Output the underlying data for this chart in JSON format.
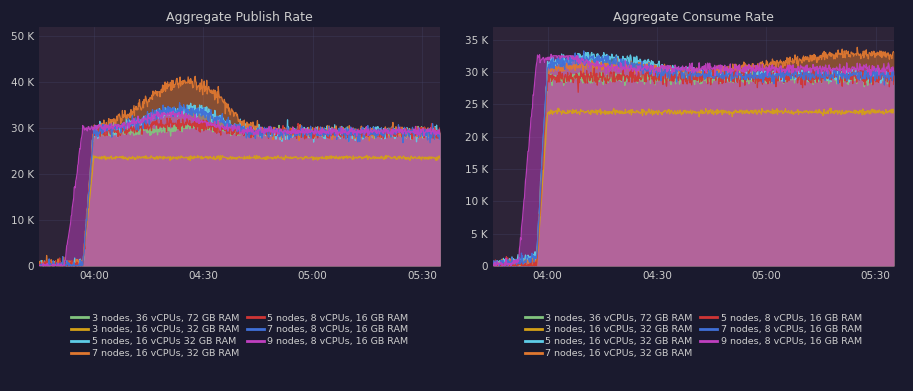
{
  "title_left": "Aggregate Publish Rate",
  "title_right": "Aggregate Consume Rate",
  "bg_color": "#1a1a2e",
  "plot_bg_color": "#2d2438",
  "text_color": "#cccccc",
  "grid_color": "#444466",
  "xticks": [
    "04:00",
    "04:30",
    "05:00",
    "05:30"
  ],
  "xtick_pos": [
    15,
    45,
    75,
    105
  ],
  "xlim": [
    0,
    110
  ],
  "yticks_left": [
    0,
    10000,
    20000,
    30000,
    40000,
    50000
  ],
  "ytick_labels_left": [
    "0",
    "10 K",
    "20 K",
    "30 K",
    "40 K",
    "50 K"
  ],
  "ylim_left": [
    0,
    52000
  ],
  "yticks_right": [
    0,
    5000,
    10000,
    15000,
    20000,
    25000,
    30000,
    35000
  ],
  "ytick_labels_right": [
    "0",
    "5 K",
    "10 K",
    "15 K",
    "20 K",
    "25 K",
    "30 K",
    "35 K"
  ],
  "ylim_right": [
    0,
    37000
  ],
  "series": [
    {
      "label": "3 nodes, 36 vCPUs, 72 GB RAM",
      "color": "#82c47e"
    },
    {
      "label": "3 nodes, 16 vCPUs, 32 GB RAM",
      "color": "#d4a017"
    },
    {
      "label": "5 nodes, 16 vCPUs 32 GB RAM",
      "color": "#5ecde8"
    },
    {
      "label": "7 nodes, 16 vCPUs, 32 GB RAM",
      "color": "#e07830"
    },
    {
      "label": "5 nodes, 8 vCPUs, 16 GB RAM",
      "color": "#d03535"
    },
    {
      "label": "7 nodes, 8 vCPUs, 16 GB RAM",
      "color": "#4070d8"
    },
    {
      "label": "9 nodes, 8 vCPUs, 16 GB RAM",
      "color": "#c040c0"
    }
  ],
  "series_right": [
    {
      "label": "3 nodes, 36 vCPUs, 72 GB RAM",
      "color": "#82c47e"
    },
    {
      "label": "3 nodes, 16 vCPUs, 32 GB RAM",
      "color": "#d4a017"
    },
    {
      "label": "5 nodes, 16 vCPUs, 32 GB RAM",
      "color": "#5ecde8"
    },
    {
      "label": "7 nodes, 16 vCPUs, 32 GB RAM",
      "color": "#e07830"
    },
    {
      "label": "5 nodes, 8 vCPUs, 16 GB RAM",
      "color": "#d03535"
    },
    {
      "label": "7 nodes, 8 vCPUs, 16 GB RAM",
      "color": "#4070d8"
    },
    {
      "label": "9 nodes, 8 vCPUs, 16 GB RAM",
      "color": "#c040c0"
    }
  ]
}
